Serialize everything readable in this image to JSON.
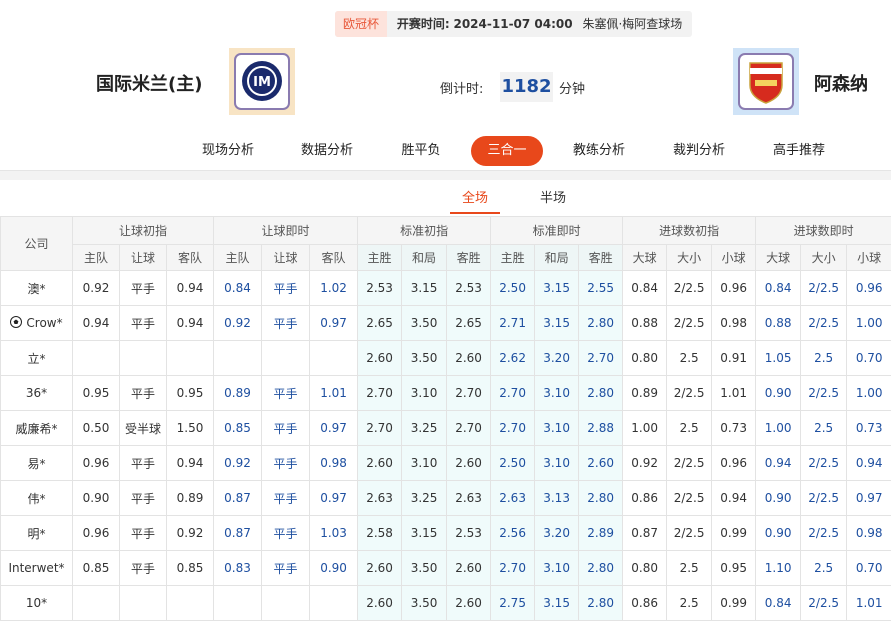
{
  "header": {
    "league": "欧冠杯",
    "time_label": "开赛时间:",
    "time": "2024-11-07 04:00",
    "venue": "朱塞佩·梅阿查球场",
    "home": "国际米兰(主)",
    "away": "阿森纳",
    "countdown_label": "倒计时:",
    "countdown": "1182",
    "countdown_unit": "分钟"
  },
  "nav": {
    "items": [
      "现场分析",
      "数据分析",
      "胜平负",
      "三合一",
      "教练分析",
      "裁判分析",
      "高手推荐"
    ],
    "active": 3
  },
  "tabs": {
    "items": [
      "全场",
      "半场"
    ],
    "active": 0
  },
  "table": {
    "company_header": "公司",
    "groups": [
      "让球初指",
      "让球即时",
      "标准初指",
      "标准即时",
      "进球数初指",
      "进球数即时"
    ],
    "subheaders": [
      "主队",
      "让球",
      "客队",
      "主队",
      "让球",
      "客队",
      "主胜",
      "和局",
      "客胜",
      "主胜",
      "和局",
      "客胜",
      "大球",
      "大小",
      "小球",
      "大球",
      "大小",
      "小球"
    ],
    "rows": [
      {
        "company": "澳*",
        "cells": [
          "0.92",
          "平手",
          "0.94",
          "0.84",
          "平手",
          "1.02",
          "2.53",
          "3.15",
          "2.53",
          "2.50",
          "3.15",
          "2.55",
          "0.84",
          "2/2.5",
          "0.96",
          "0.84",
          "2/2.5",
          "0.96"
        ]
      },
      {
        "company": "Crow*",
        "cells": [
          "0.94",
          "平手",
          "0.94",
          "0.92",
          "平手",
          "0.97",
          "2.65",
          "3.50",
          "2.65",
          "2.71",
          "3.15",
          "2.80",
          "0.88",
          "2/2.5",
          "0.98",
          "0.88",
          "2/2.5",
          "1.00"
        ]
      },
      {
        "company": "立*",
        "cells": [
          null,
          null,
          null,
          null,
          null,
          null,
          "2.60",
          "3.50",
          "2.60",
          "2.62",
          "3.20",
          "2.70",
          "0.80",
          "2.5",
          "0.91",
          "1.05",
          "2.5",
          "0.70"
        ]
      },
      {
        "company": "36*",
        "cells": [
          "0.95",
          "平手",
          "0.95",
          "0.89",
          "平手",
          "1.01",
          "2.70",
          "3.10",
          "2.70",
          "2.70",
          "3.10",
          "2.80",
          "0.89",
          "2/2.5",
          "1.01",
          "0.90",
          "2/2.5",
          "1.00"
        ]
      },
      {
        "company": "威廉希*",
        "cells": [
          "0.50",
          "受半球",
          "1.50",
          "0.85",
          "平手",
          "0.97",
          "2.70",
          "3.25",
          "2.70",
          "2.70",
          "3.10",
          "2.88",
          "1.00",
          "2.5",
          "0.73",
          "1.00",
          "2.5",
          "0.73"
        ]
      },
      {
        "company": "易*",
        "cells": [
          "0.96",
          "平手",
          "0.94",
          "0.92",
          "平手",
          "0.98",
          "2.60",
          "3.10",
          "2.60",
          "2.50",
          "3.10",
          "2.60",
          "0.92",
          "2/2.5",
          "0.96",
          "0.94",
          "2/2.5",
          "0.94"
        ]
      },
      {
        "company": "伟*",
        "cells": [
          "0.90",
          "平手",
          "0.89",
          "0.87",
          "平手",
          "0.97",
          "2.63",
          "3.25",
          "2.63",
          "2.63",
          "3.13",
          "2.80",
          "0.86",
          "2/2.5",
          "0.94",
          "0.90",
          "2/2.5",
          "0.97"
        ]
      },
      {
        "company": "明*",
        "cells": [
          "0.96",
          "平手",
          "0.92",
          "0.87",
          "平手",
          "1.03",
          "2.58",
          "3.15",
          "2.53",
          "2.56",
          "3.20",
          "2.89",
          "0.87",
          "2/2.5",
          "0.99",
          "0.90",
          "2/2.5",
          "0.98"
        ]
      },
      {
        "company": "Interwet*",
        "cells": [
          "0.85",
          "平手",
          "0.85",
          "0.83",
          "平手",
          "0.90",
          "2.60",
          "3.50",
          "2.60",
          "2.70",
          "3.10",
          "2.80",
          "0.80",
          "2.5",
          "0.95",
          "1.10",
          "2.5",
          "0.70"
        ]
      },
      {
        "company": "10*",
        "cells": [
          null,
          null,
          null,
          null,
          null,
          null,
          "2.60",
          "3.50",
          "2.60",
          "2.75",
          "3.15",
          "2.80",
          "0.86",
          "2.5",
          "0.99",
          "0.84",
          "2/2.5",
          "1.01"
        ]
      }
    ]
  }
}
